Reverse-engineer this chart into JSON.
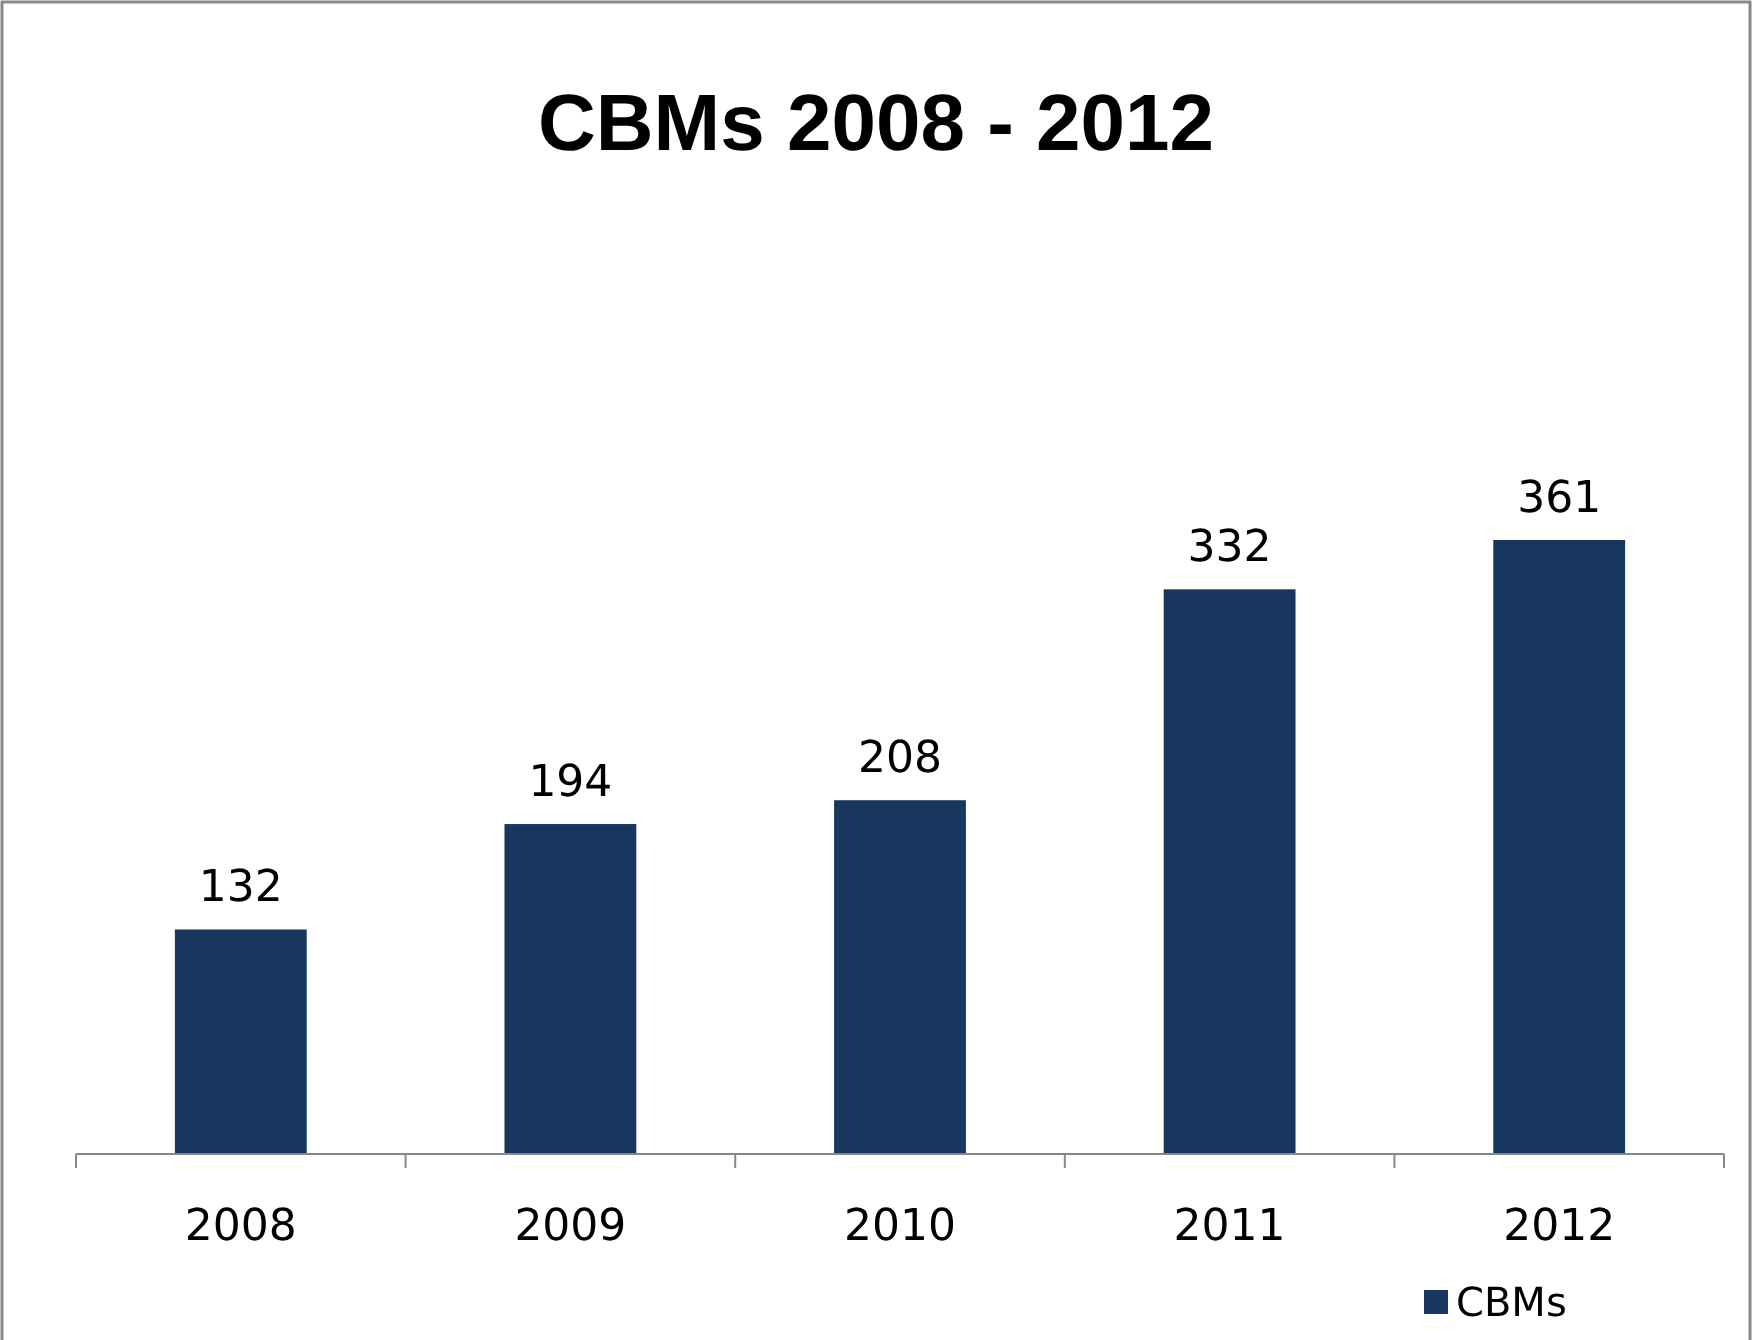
{
  "chart_data": {
    "type": "bar",
    "title": "CBMs 2008 - 2012",
    "categories": [
      "2008",
      "2009",
      "2010",
      "2011",
      "2012"
    ],
    "series": [
      {
        "name": "CBMs",
        "color": "#17375e",
        "values": [
          132,
          194,
          208,
          332,
          361
        ]
      }
    ],
    "data_labels": true,
    "legend": "bottom right"
  }
}
